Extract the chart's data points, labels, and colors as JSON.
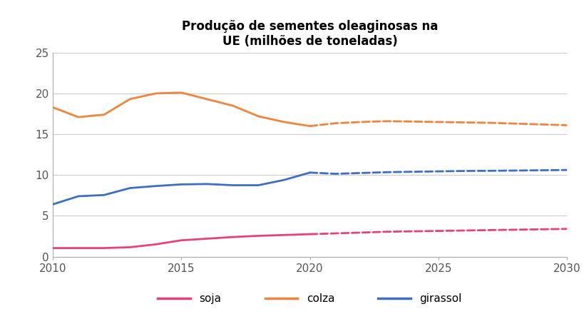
{
  "title": "Produção de sementes oleaginosas na\nUE (milhões de toneladas)",
  "xlim": [
    2010,
    2030
  ],
  "ylim": [
    0,
    25
  ],
  "yticks": [
    0,
    5,
    10,
    15,
    20,
    25
  ],
  "xticks": [
    2010,
    2015,
    2020,
    2025,
    2030
  ],
  "bg_color": "#ffffff",
  "grid_color": "#cccccc",
  "soja_color": "#e8417a",
  "colza_color": "#f0843c",
  "girassol_color": "#3a6fc4",
  "soja_hist_x": [
    2010,
    2011,
    2012,
    2013,
    2014,
    2015,
    2016,
    2017,
    2018,
    2019,
    2020
  ],
  "soja_hist_y": [
    1.05,
    1.05,
    1.05,
    1.15,
    1.5,
    2.0,
    2.2,
    2.4,
    2.55,
    2.65,
    2.75
  ],
  "soja_proj_x": [
    2020,
    2021,
    2022,
    2023,
    2024,
    2025,
    2026,
    2027,
    2028,
    2029,
    2030
  ],
  "soja_proj_y": [
    2.75,
    2.85,
    2.95,
    3.05,
    3.1,
    3.15,
    3.2,
    3.25,
    3.3,
    3.35,
    3.4
  ],
  "colza_hist_x": [
    2010,
    2011,
    2012,
    2013,
    2014,
    2015,
    2016,
    2017,
    2018,
    2019,
    2020
  ],
  "colza_hist_y": [
    18.3,
    17.1,
    17.4,
    19.3,
    20.0,
    20.1,
    19.3,
    18.5,
    17.2,
    16.5,
    16.0
  ],
  "colza_proj_x": [
    2020,
    2021,
    2022,
    2023,
    2024,
    2025,
    2026,
    2027,
    2028,
    2029,
    2030
  ],
  "colza_proj_y": [
    16.0,
    16.35,
    16.5,
    16.6,
    16.55,
    16.5,
    16.45,
    16.4,
    16.3,
    16.2,
    16.1
  ],
  "girassol_hist_x": [
    2010,
    2011,
    2012,
    2013,
    2014,
    2015,
    2016,
    2017,
    2018,
    2019,
    2020
  ],
  "girassol_hist_y": [
    6.4,
    7.4,
    7.55,
    8.4,
    8.65,
    8.85,
    8.9,
    8.75,
    8.75,
    9.4,
    10.3
  ],
  "girassol_proj_x": [
    2020,
    2021,
    2022,
    2023,
    2024,
    2025,
    2026,
    2027,
    2028,
    2029,
    2030
  ],
  "girassol_proj_y": [
    10.3,
    10.15,
    10.25,
    10.35,
    10.4,
    10.45,
    10.5,
    10.52,
    10.55,
    10.58,
    10.62
  ],
  "legend_labels": [
    "soja",
    "colza",
    "girassol"
  ]
}
